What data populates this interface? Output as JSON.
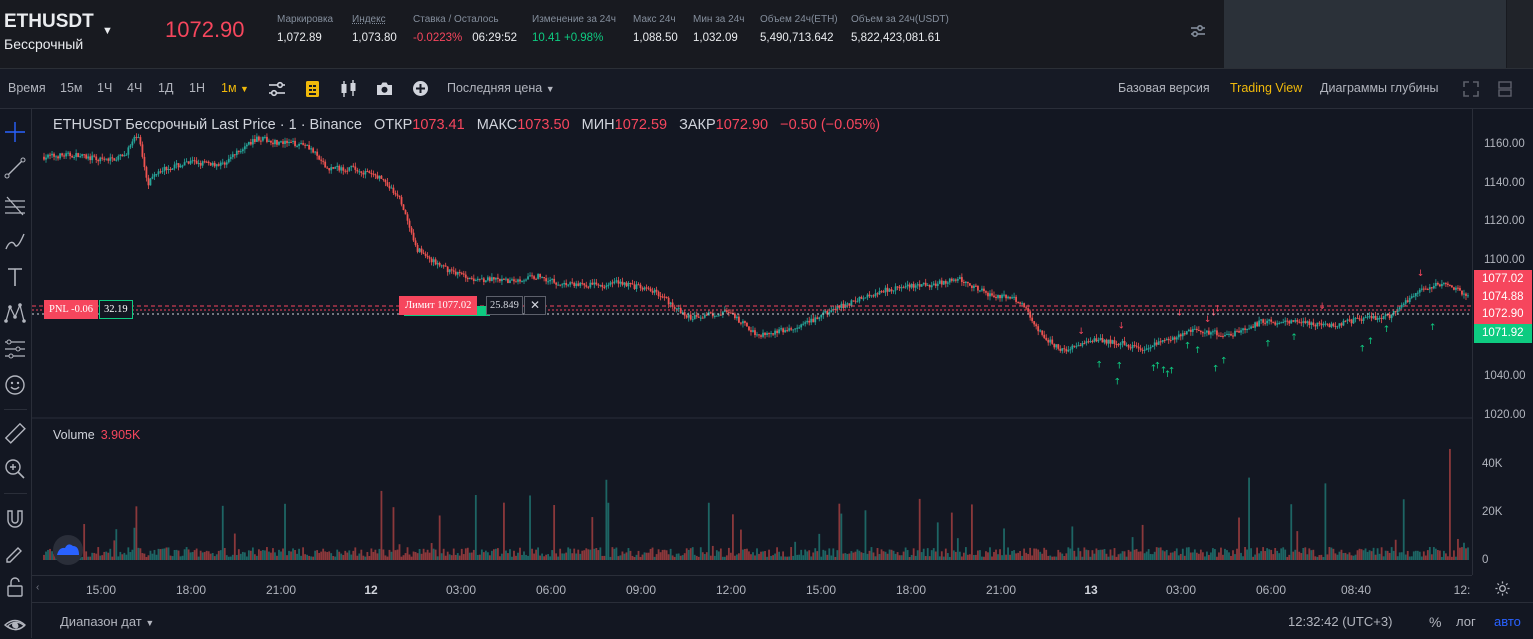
{
  "header": {
    "symbol": "ETHUSDT",
    "contract_type": "Бессрочный",
    "last_price": "1072.90",
    "stats": [
      {
        "label": "Маркировка",
        "value": "1,072.89",
        "tone": "normal"
      },
      {
        "label": "Индекс",
        "value": "1,073.80",
        "tone": "normal"
      },
      {
        "label": "Ставка / Осталось",
        "value": "-0.0223%",
        "value2": "06:29:52",
        "tone": "red"
      },
      {
        "label": "Изменение за 24ч",
        "value": "10.41 +0.98%",
        "tone": "green"
      },
      {
        "label": "Макс 24ч",
        "value": "1,088.50",
        "tone": "normal"
      },
      {
        "label": "Мин за 24ч",
        "value": "1,032.09",
        "tone": "normal"
      },
      {
        "label": "Объем 24ч(ETH)",
        "value": "5,490,713.642",
        "tone": "normal"
      },
      {
        "label": "Объем за 24ч(USDT)",
        "value": "5,822,423,081.61",
        "tone": "normal"
      }
    ]
  },
  "toolbar": {
    "time_label": "Время",
    "intervals": [
      "15м",
      "1Ч",
      "4Ч",
      "1Д",
      "1Н"
    ],
    "active_interval": "1м",
    "price_type": "Последняя цена",
    "views": [
      "Базовая версия",
      "Trading View",
      "Диаграммы глубины"
    ],
    "active_view": "Trading View"
  },
  "legend": {
    "title": "ETHUSDT Бессрочный Last Price · 1 · Binance",
    "open_label": "ОТКР",
    "open": "1073.41",
    "high_label": "МАКС",
    "high": "1073.50",
    "low_label": "МИН",
    "low": "1072.59",
    "close_label": "ЗАКР",
    "close": "1072.90",
    "change": "−0.50 (−0.05%)"
  },
  "volume_legend": {
    "label": "Volume",
    "value": "3.905K"
  },
  "orders": {
    "pnl_label": "PNL -0.06",
    "pnl_qty": "32.19",
    "limit_label": "Лимит 1077.02",
    "limit_qty": "25.849",
    "close_glyph": "✕"
  },
  "price_axis": {
    "ticks": [
      "1160.00",
      "1140.00",
      "1120.00",
      "1100.00",
      "1040.00",
      "1020.00"
    ],
    "labels": [
      {
        "text": "1077.02",
        "color": "#f6465d"
      },
      {
        "text": "1074.88",
        "color": "#f6465d"
      },
      {
        "text": "1072.90",
        "color": "#f6465d"
      },
      {
        "text": "1071.92",
        "color": "#0ecb81"
      }
    ]
  },
  "volume_axis": {
    "ticks": [
      "40K",
      "20K",
      "0"
    ]
  },
  "time_axis": {
    "ticks": [
      "15:00",
      "18:00",
      "21:00",
      "12",
      "03:00",
      "06:00",
      "09:00",
      "12:00",
      "15:00",
      "18:00",
      "21:00",
      "13",
      "03:00",
      "06:00",
      "08:40",
      "12:"
    ]
  },
  "bottom": {
    "date_range": "Диапазон дат",
    "clock": "12:32:42 (UTC+3)",
    "percent": "%",
    "log": "лог",
    "auto": "авто"
  },
  "chart_data": {
    "type": "candlestick",
    "interval": "1м",
    "y_ticks": [
      1160,
      1140,
      1120,
      1100,
      1040,
      1020
    ],
    "volume_ticks": [
      "40K",
      "20K",
      "0"
    ],
    "close_path": [
      [
        0,
        1146
      ],
      [
        30,
        1147
      ],
      [
        60,
        1144
      ],
      [
        80,
        1146
      ],
      [
        95,
        1158
      ],
      [
        105,
        1132
      ],
      [
        115,
        1139
      ],
      [
        150,
        1143
      ],
      [
        180,
        1142
      ],
      [
        215,
        1156
      ],
      [
        240,
        1153
      ],
      [
        265,
        1153
      ],
      [
        285,
        1140
      ],
      [
        310,
        1140
      ],
      [
        340,
        1135
      ],
      [
        360,
        1123
      ],
      [
        375,
        1098
      ],
      [
        400,
        1088
      ],
      [
        430,
        1082
      ],
      [
        470,
        1080
      ],
      [
        500,
        1083
      ],
      [
        520,
        1079
      ],
      [
        560,
        1078
      ],
      [
        580,
        1080
      ],
      [
        620,
        1074
      ],
      [
        650,
        1061
      ],
      [
        690,
        1064
      ],
      [
        720,
        1052
      ],
      [
        760,
        1055
      ],
      [
        800,
        1066
      ],
      [
        850,
        1076
      ],
      [
        890,
        1078
      ],
      [
        925,
        1081
      ],
      [
        950,
        1074
      ],
      [
        985,
        1070
      ],
      [
        1010,
        1050
      ],
      [
        1030,
        1043
      ],
      [
        1060,
        1050
      ],
      [
        1110,
        1045
      ],
      [
        1160,
        1054
      ],
      [
        1200,
        1052
      ],
      [
        1230,
        1059
      ],
      [
        1270,
        1058
      ],
      [
        1300,
        1057
      ],
      [
        1330,
        1060
      ],
      [
        1360,
        1062
      ],
      [
        1390,
        1076
      ],
      [
        1410,
        1079
      ],
      [
        1440,
        1073
      ]
    ],
    "x_domain": [
      0,
      1440
    ],
    "y_domain": [
      1010,
      1167
    ],
    "position_lines": [
      1074.88,
      1072.9,
      1077.02
    ]
  }
}
